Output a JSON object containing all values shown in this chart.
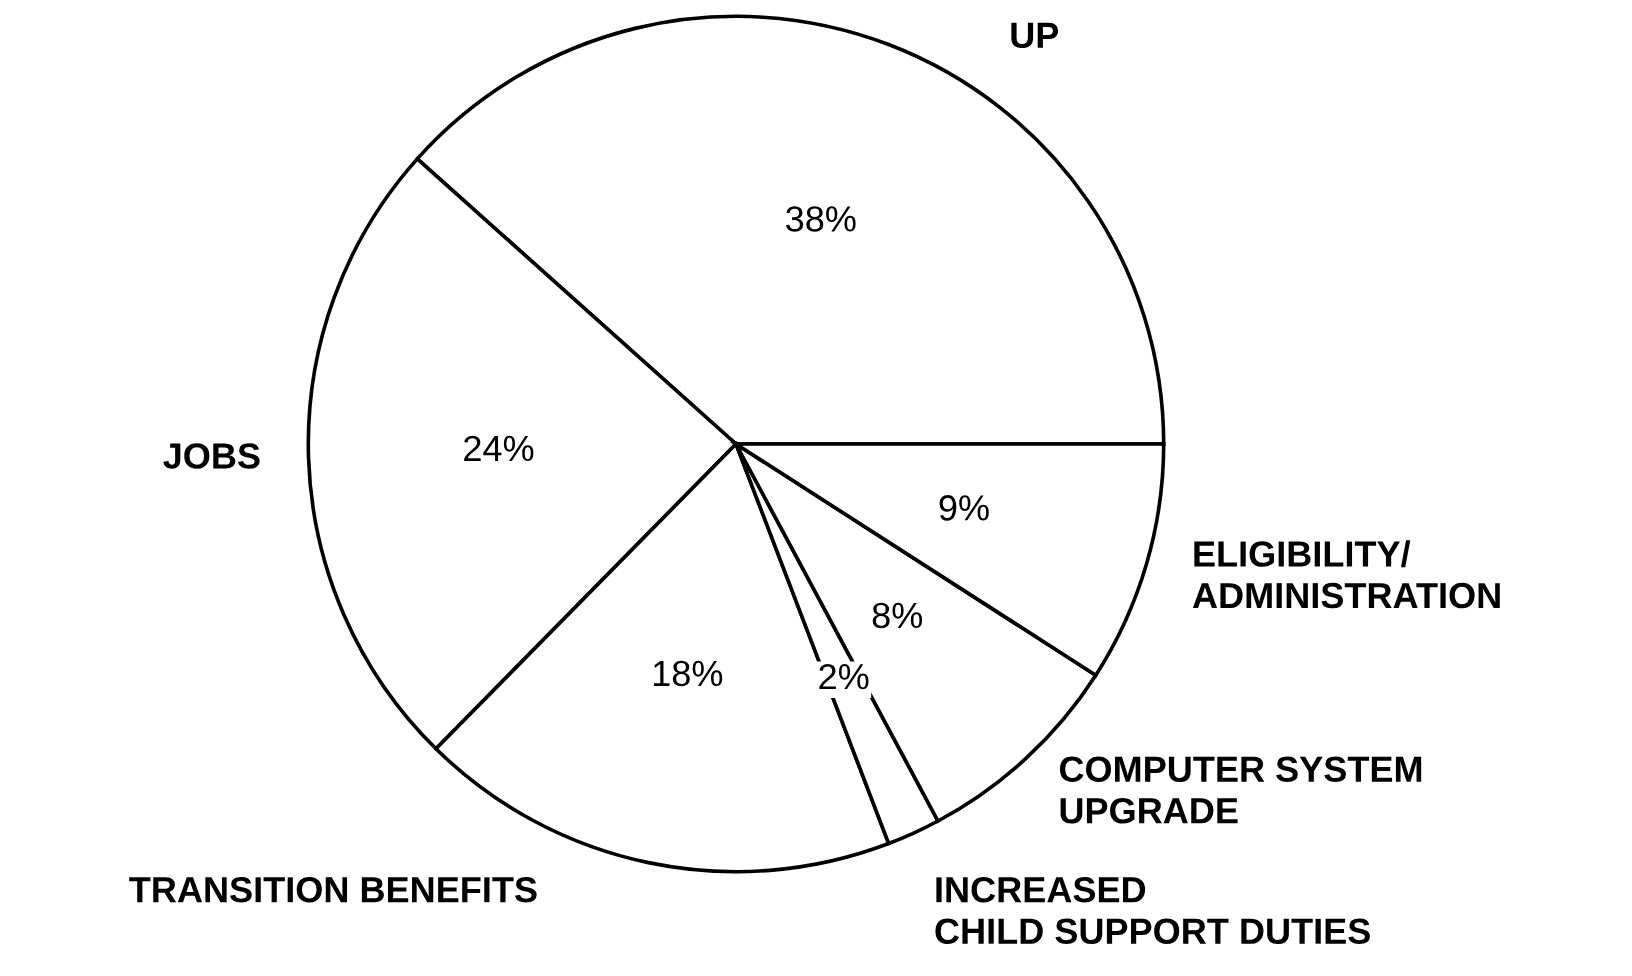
{
  "chart_data": {
    "type": "pie",
    "categories": [
      "UP",
      "JOBS",
      "TRANSITION BENEFITS",
      "INCREASED\nCHILD SUPPORT DUTIES",
      "COMPUTER SYSTEM\nUPGRADE",
      "ELIGIBILITY/\nADMINISTRATION"
    ],
    "values": [
      38,
      24,
      18,
      2,
      8,
      9
    ],
    "value_labels": [
      "38%",
      "24%",
      "18%",
      "2%",
      "8%",
      "9%"
    ],
    "colors": [
      "#ffffff",
      "#ffffff",
      "#ffffff",
      "#ffffff",
      "#ffffff",
      "#ffffff"
    ]
  }
}
